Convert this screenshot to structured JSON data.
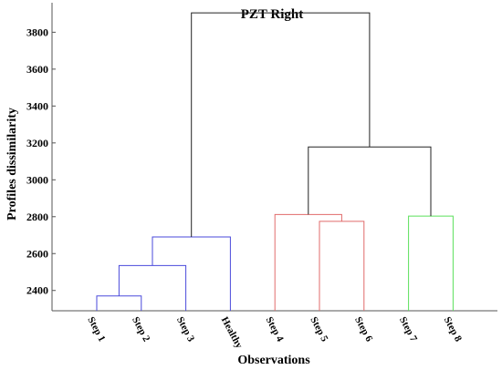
{
  "chart_data": {
    "type": "dendrogram",
    "title": "PZT Right",
    "xlabel": "Observations",
    "ylabel": "Profiles dissimilarity",
    "ylim": [
      2290,
      3960
    ],
    "yticks": [
      2400,
      2600,
      2800,
      3000,
      3200,
      3400,
      3600,
      3800
    ],
    "leaves": [
      "Step 1",
      "Step 2",
      "Step 3",
      "Healthy",
      "Step 4",
      "Step 5",
      "Step 6",
      "Step 7",
      "Step 8"
    ],
    "links": [
      {
        "left": 0,
        "right": 1,
        "height": 2370,
        "color": "#4a4adb"
      },
      {
        "left": 9,
        "right": 2,
        "height": 2535,
        "color": "#4a4adb"
      },
      {
        "left": 10,
        "right": 3,
        "height": 2690,
        "color": "#4a4adb"
      },
      {
        "left": 5,
        "right": 6,
        "height": 2775,
        "color": "#e06b6b"
      },
      {
        "left": 4,
        "right": 12,
        "height": 2812,
        "color": "#e06b6b"
      },
      {
        "left": 7,
        "right": 8,
        "height": 2803,
        "color": "#5be05b"
      },
      {
        "left": 13,
        "right": 14,
        "height": 3178,
        "color": "#222222"
      },
      {
        "left": 11,
        "right": 15,
        "height": 3905,
        "color": "#222222"
      }
    ],
    "grid": false,
    "legend": "none"
  }
}
